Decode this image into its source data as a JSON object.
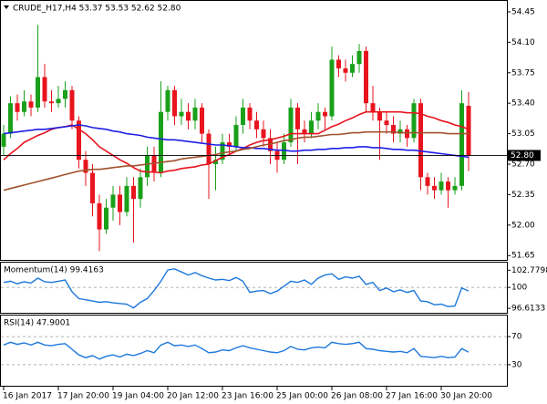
{
  "chart_data": [
    {
      "type": "candlestick",
      "title": "CRUDE_H17,H4  53.37 53.53 52.62 52.80",
      "categories": [
        "16 Jan 2017",
        null,
        null,
        null,
        null,
        null,
        null,
        null,
        "17 Jan 20:00",
        null,
        null,
        null,
        null,
        null,
        null,
        null,
        "19 Jan 04:00",
        null,
        null,
        null,
        null,
        null,
        null,
        null,
        "20 Jan 12:00",
        null,
        null,
        null,
        null,
        null,
        null,
        null,
        "23 Jan 16:00",
        null,
        null,
        null,
        null,
        null,
        null,
        null,
        "25 Jan 00:00",
        null,
        null,
        null,
        null,
        null,
        null,
        null,
        "26 Jan 08:00",
        null,
        null,
        null,
        null,
        null,
        null,
        null,
        "27 Jan 16:00",
        null,
        null,
        null,
        null,
        null,
        null,
        null,
        "30 Jan 20:00",
        null,
        null,
        null,
        null
      ],
      "open": [
        52.9,
        53.05,
        53.4,
        53.3,
        53.42,
        53.35,
        53.7,
        53.42,
        53.4,
        53.45,
        53.55,
        53.2,
        52.75,
        52.6,
        52.25,
        51.95,
        52.2,
        52.35,
        52.15,
        52.45,
        52.3,
        52.55,
        52.8,
        52.6,
        53.3,
        53.55,
        53.25,
        53.3,
        53.2,
        53.35,
        53.05,
        52.7,
        52.75,
        52.95,
        52.9,
        53.15,
        53.35,
        53.2,
        53.1,
        53.0,
        52.85,
        52.75,
        52.95,
        53.35,
        53.1,
        53.05,
        53.2,
        53.3,
        53.25,
        53.9,
        53.8,
        53.75,
        53.85,
        54.0,
        53.4,
        53.3,
        53.2,
        53.15,
        53.05,
        53.1,
        53.0,
        53.4,
        52.55,
        52.45,
        52.4,
        52.5,
        52.4,
        52.45,
        53.37
      ],
      "high": [
        53.15,
        53.48,
        53.5,
        53.55,
        53.5,
        54.3,
        53.85,
        53.55,
        53.6,
        53.65,
        53.6,
        53.25,
        52.85,
        52.7,
        52.35,
        52.3,
        52.45,
        52.45,
        52.55,
        52.55,
        52.65,
        52.9,
        52.9,
        53.65,
        53.6,
        53.6,
        53.45,
        53.4,
        53.45,
        53.4,
        53.1,
        52.9,
        53.05,
        53.05,
        53.25,
        53.45,
        53.4,
        53.3,
        53.2,
        53.1,
        52.95,
        53.05,
        53.45,
        53.4,
        53.2,
        53.3,
        53.4,
        53.35,
        54.05,
        53.95,
        53.9,
        53.95,
        54.08,
        54.05,
        53.6,
        53.35,
        53.3,
        53.25,
        53.2,
        53.15,
        53.45,
        53.45,
        52.6,
        52.55,
        52.6,
        52.55,
        52.55,
        53.55,
        53.53
      ],
      "low": [
        52.8,
        53.0,
        53.2,
        53.25,
        53.25,
        53.3,
        53.35,
        53.3,
        53.35,
        53.35,
        53.1,
        52.65,
        52.45,
        52.1,
        51.7,
        51.9,
        52.05,
        52.0,
        52.1,
        51.8,
        52.2,
        52.45,
        52.5,
        52.55,
        53.2,
        53.15,
        53.15,
        53.1,
        53.1,
        52.95,
        52.3,
        52.4,
        52.7,
        52.8,
        52.85,
        53.05,
        53.1,
        53.0,
        52.9,
        52.7,
        52.6,
        52.7,
        52.9,
        52.7,
        52.95,
        53.0,
        53.1,
        53.1,
        53.2,
        53.7,
        53.65,
        53.7,
        53.75,
        53.3,
        53.2,
        52.75,
        53.05,
        52.95,
        52.95,
        52.9,
        52.95,
        52.4,
        52.35,
        52.3,
        52.35,
        52.2,
        52.35,
        52.4,
        52.62
      ],
      "close": [
        53.05,
        53.4,
        53.3,
        53.42,
        53.35,
        53.7,
        53.42,
        53.4,
        53.45,
        53.55,
        53.2,
        52.75,
        52.6,
        52.25,
        51.95,
        52.2,
        52.35,
        52.15,
        52.45,
        52.3,
        52.55,
        52.8,
        52.6,
        53.3,
        53.55,
        53.25,
        53.3,
        53.2,
        53.35,
        53.05,
        52.7,
        52.75,
        52.95,
        52.9,
        53.15,
        53.35,
        53.2,
        53.1,
        53.0,
        52.85,
        52.75,
        52.95,
        53.35,
        53.1,
        53.05,
        53.2,
        53.3,
        53.25,
        53.9,
        53.8,
        53.75,
        53.85,
        54.0,
        53.4,
        53.3,
        53.2,
        53.15,
        53.05,
        53.1,
        53.0,
        53.4,
        52.55,
        52.45,
        52.4,
        52.5,
        52.4,
        52.45,
        53.4,
        52.8
      ],
      "up_color": "#1aa01a",
      "down_color": "#e8141e",
      "series": [
        {
          "color": "#e8141e",
          "values": [
            52.75,
            52.82,
            52.88,
            52.95,
            52.99,
            53.03,
            53.06,
            53.1,
            53.12,
            53.13,
            53.15,
            53.1,
            53.05,
            52.98,
            52.9,
            52.85,
            52.8,
            52.75,
            52.71,
            52.66,
            52.62,
            52.61,
            52.61,
            52.6,
            52.62,
            52.63,
            52.65,
            52.66,
            52.67,
            52.69,
            52.7,
            52.74,
            52.78,
            52.81,
            52.85,
            52.88,
            52.92,
            52.95,
            52.97,
            52.98,
            53.0,
            53.02,
            53.05,
            53.05,
            53.05,
            53.05,
            53.05,
            53.09,
            53.13,
            53.16,
            53.2,
            53.23,
            53.27,
            53.3,
            53.3,
            53.3,
            53.3,
            53.3,
            53.3,
            53.29,
            53.29,
            53.28,
            53.25,
            53.23,
            53.2,
            53.18,
            53.15,
            53.13,
            53.1
          ]
        },
        {
          "color": "#1e1ee6",
          "values": [
            53.05,
            53.06,
            53.07,
            53.08,
            53.09,
            53.1,
            53.1,
            53.11,
            53.12,
            53.13,
            53.14,
            53.15,
            53.14,
            53.12,
            53.11,
            53.1,
            53.08,
            53.07,
            53.05,
            53.04,
            53.03,
            53.01,
            53.0,
            52.99,
            52.98,
            52.98,
            52.97,
            52.96,
            52.95,
            52.94,
            52.93,
            52.92,
            52.92,
            52.91,
            52.9,
            52.89,
            52.89,
            52.88,
            52.88,
            52.87,
            52.86,
            52.86,
            52.85,
            52.85,
            52.86,
            52.86,
            52.87,
            52.87,
            52.88,
            52.88,
            52.89,
            52.89,
            52.9,
            52.9,
            52.89,
            52.89,
            52.88,
            52.87,
            52.87,
            52.86,
            52.86,
            52.85,
            52.84,
            52.83,
            52.82,
            52.81,
            52.8,
            52.79,
            52.78
          ]
        },
        {
          "color": "#a0522d",
          "values": [
            52.4,
            52.42,
            52.44,
            52.46,
            52.48,
            52.5,
            52.52,
            52.54,
            52.56,
            52.58,
            52.6,
            52.62,
            52.63,
            52.64,
            52.64,
            52.65,
            52.66,
            52.67,
            52.68,
            52.68,
            52.69,
            52.7,
            52.71,
            52.72,
            52.73,
            52.74,
            52.76,
            52.77,
            52.78,
            52.79,
            52.8,
            52.81,
            52.83,
            52.84,
            52.85,
            52.87,
            52.88,
            52.9,
            52.92,
            52.93,
            52.95,
            52.97,
            52.98,
            53.0,
            53.01,
            53.01,
            53.02,
            53.03,
            53.04,
            53.04,
            53.05,
            53.06,
            53.06,
            53.07,
            53.07,
            53.07,
            53.07,
            53.07,
            53.06,
            53.06,
            53.06,
            53.06,
            53.06,
            53.06,
            53.06,
            53.05,
            53.05,
            53.05,
            53.05
          ]
        }
      ],
      "last_price": {
        "value": 52.8,
        "label": "52.80"
      },
      "ylim": [
        51.6,
        54.575
      ],
      "yticks": [
        54.45,
        {
          "value": 54.1,
          "label": "54.10"
        },
        53.75,
        {
          "value": 53.4,
          "label": "53.40"
        },
        53.05,
        {
          "value": 52.7,
          "label": "52.70"
        },
        52.35,
        {
          "value": 52.0,
          "label": "52.00"
        },
        51.65
      ]
    },
    {
      "type": "line",
      "title": "Momentum(14) 99.4163",
      "color": "#1e78dc",
      "values": [
        100.8,
        101.0,
        100.6,
        100.9,
        100.7,
        101.5,
        100.9,
        100.8,
        101.0,
        101.2,
        99.3,
        98.2,
        98.0,
        97.8,
        97.6,
        97.7,
        97.5,
        97.4,
        97.3,
        96.7,
        97.6,
        98.2,
        99.5,
        101.0,
        102.8,
        103.0,
        102.5,
        102.0,
        102.4,
        101.9,
        101.5,
        101.2,
        101.3,
        101.1,
        101.6,
        101.0,
        99.2,
        99.4,
        99.5,
        99.0,
        99.4,
        100.2,
        101.0,
        100.8,
        101.2,
        100.5,
        101.5,
        102.0,
        102.2,
        101.3,
        101.7,
        101.5,
        101.8,
        100.5,
        100.8,
        99.5,
        99.9,
        99.3,
        99.6,
        99.2,
        99.5,
        97.8,
        97.7,
        97.2,
        97.3,
        96.9,
        97.0,
        99.9,
        99.4163
      ],
      "ylim": [
        95.9,
        104.0
      ],
      "yticks": [
        102.7798,
        100,
        96.6133
      ],
      "level_lines": [
        100
      ]
    },
    {
      "type": "line",
      "title": "RSI(14) 47.9001",
      "color": "#1e78dc",
      "values": [
        58,
        62,
        59,
        61,
        58,
        62,
        58,
        57,
        59,
        60,
        52,
        44,
        40,
        43,
        38,
        42,
        44,
        41,
        45,
        43,
        46,
        50,
        47,
        58,
        62,
        57,
        58,
        56,
        58,
        53,
        47,
        48,
        51,
        50,
        54,
        57,
        54,
        52,
        50,
        48,
        47,
        50,
        56,
        52,
        51,
        54,
        55,
        54,
        62,
        60,
        59,
        60,
        62,
        53,
        52,
        50,
        49,
        48,
        49,
        47,
        53,
        42,
        41,
        40,
        42,
        40,
        41,
        53,
        47.9001
      ],
      "ylim": [
        0,
        100
      ],
      "yticks": [
        70,
        30
      ],
      "level_lines": [
        70,
        30
      ]
    }
  ]
}
